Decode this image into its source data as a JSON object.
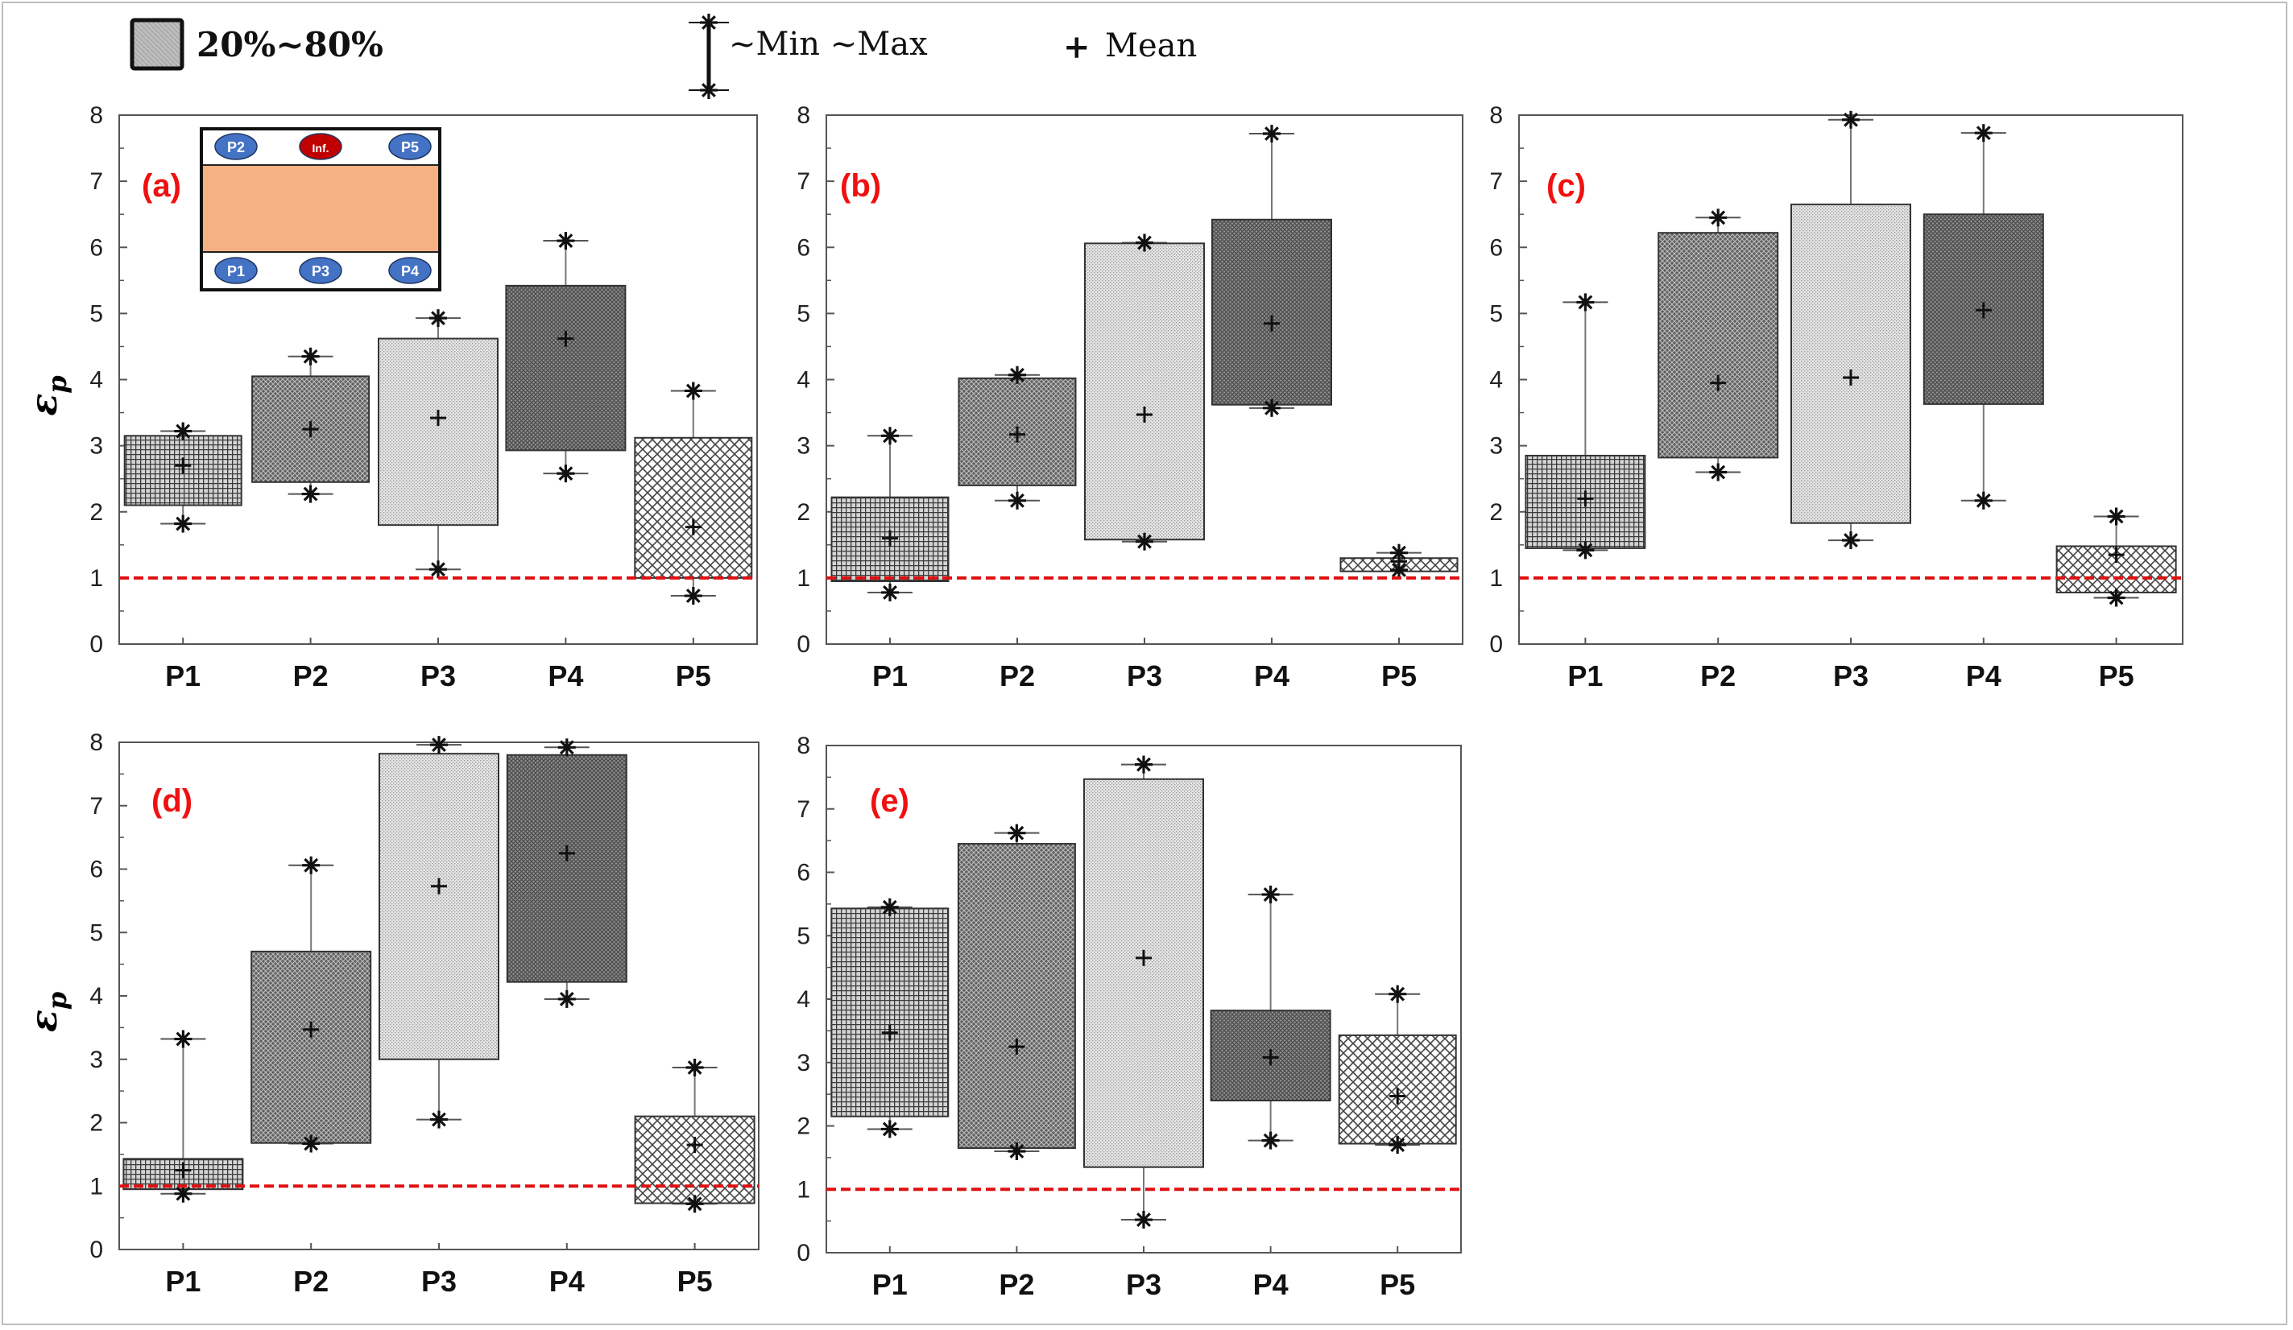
{
  "legend": {
    "box_label": "20%~80%",
    "whisker_label": "~Min ~Max",
    "mean_symbol": "+",
    "mean_label": "Mean"
  },
  "colors": {
    "reference_line": "#e01010",
    "panel_label": "#f01010",
    "box_stroke": "#333333",
    "inset_fill": "#f4b183",
    "sensor_fill": "#4472c4",
    "infusion_fill": "#c00000"
  },
  "inset": {
    "top_sensors": [
      "P2",
      "Inf.",
      "P5"
    ],
    "bottom_sensors": [
      "P1",
      "P3",
      "P4"
    ]
  },
  "chart_data": [
    {
      "type": "box",
      "label": "(a)",
      "ylabel": "εp",
      "ylim": [
        0,
        8
      ],
      "yticks": [
        "0",
        "1",
        "2",
        "3",
        "4",
        "5",
        "6",
        "7",
        "8"
      ],
      "reference_line": 1,
      "categories": [
        "P1",
        "P2",
        "P3",
        "P4",
        "P5"
      ],
      "boxes": [
        {
          "q20": 2.1,
          "q80": 3.15,
          "min": 1.82,
          "max": 3.22,
          "mean": 2.7,
          "pattern": "grid"
        },
        {
          "q20": 2.45,
          "q80": 4.05,
          "min": 2.27,
          "max": 4.35,
          "mean": 3.25,
          "pattern": "dark"
        },
        {
          "q20": 1.8,
          "q80": 4.62,
          "min": 1.13,
          "max": 4.93,
          "mean": 3.42,
          "pattern": "light"
        },
        {
          "q20": 2.93,
          "q80": 5.42,
          "min": 2.58,
          "max": 6.1,
          "mean": 4.62,
          "pattern": "medium"
        },
        {
          "q20": 1.0,
          "q80": 3.12,
          "min": 0.73,
          "max": 3.83,
          "mean": 1.77,
          "pattern": "cross"
        }
      ]
    },
    {
      "type": "box",
      "label": "(b)",
      "ylabel": "",
      "ylim": [
        0,
        8
      ],
      "yticks": [
        "0",
        "1",
        "2",
        "3",
        "4",
        "5",
        "6",
        "7",
        "8"
      ],
      "reference_line": 1,
      "categories": [
        "P1",
        "P2",
        "P3",
        "P4",
        "P5"
      ],
      "boxes": [
        {
          "q20": 0.95,
          "q80": 2.22,
          "min": 0.78,
          "max": 3.15,
          "mean": 1.6,
          "pattern": "grid"
        },
        {
          "q20": 2.4,
          "q80": 4.02,
          "min": 2.17,
          "max": 4.07,
          "mean": 3.17,
          "pattern": "dark"
        },
        {
          "q20": 1.58,
          "q80": 6.06,
          "min": 1.55,
          "max": 6.07,
          "mean": 3.47,
          "pattern": "light"
        },
        {
          "q20": 3.62,
          "q80": 6.42,
          "min": 3.57,
          "max": 7.72,
          "mean": 4.85,
          "pattern": "medium"
        },
        {
          "q20": 1.1,
          "q80": 1.3,
          "min": 1.12,
          "max": 1.38,
          "mean": 1.25,
          "pattern": "cross"
        }
      ]
    },
    {
      "type": "box",
      "label": "(c)",
      "ylabel": "",
      "ylim": [
        0,
        8
      ],
      "yticks": [
        "0",
        "1",
        "2",
        "3",
        "4",
        "5",
        "6",
        "7",
        "8"
      ],
      "reference_line": 1,
      "categories": [
        "P1",
        "P2",
        "P3",
        "P4",
        "P5"
      ],
      "boxes": [
        {
          "q20": 1.45,
          "q80": 2.85,
          "min": 1.42,
          "max": 5.17,
          "mean": 2.2,
          "pattern": "grid"
        },
        {
          "q20": 2.82,
          "q80": 6.22,
          "min": 2.6,
          "max": 6.45,
          "mean": 3.95,
          "pattern": "dark"
        },
        {
          "q20": 1.83,
          "q80": 6.65,
          "min": 1.57,
          "max": 7.93,
          "mean": 4.03,
          "pattern": "light"
        },
        {
          "q20": 3.63,
          "q80": 6.5,
          "min": 2.17,
          "max": 7.73,
          "mean": 5.05,
          "pattern": "medium"
        },
        {
          "q20": 0.78,
          "q80": 1.48,
          "min": 0.7,
          "max": 1.93,
          "mean": 1.35,
          "pattern": "cross"
        }
      ]
    },
    {
      "type": "box",
      "label": "(d)",
      "ylabel": "εp",
      "ylim": [
        0,
        8
      ],
      "yticks": [
        "0",
        "1",
        "2",
        "3",
        "4",
        "5",
        "6",
        "7",
        "8"
      ],
      "reference_line": 1,
      "categories": [
        "P1",
        "P2",
        "P3",
        "P4",
        "P5"
      ],
      "boxes": [
        {
          "q20": 0.95,
          "q80": 1.43,
          "min": 0.88,
          "max": 3.32,
          "mean": 1.25,
          "pattern": "grid"
        },
        {
          "q20": 1.68,
          "q80": 4.7,
          "min": 1.67,
          "max": 6.06,
          "mean": 3.47,
          "pattern": "dark"
        },
        {
          "q20": 3.0,
          "q80": 7.82,
          "min": 2.05,
          "max": 7.96,
          "mean": 5.73,
          "pattern": "light"
        },
        {
          "q20": 4.22,
          "q80": 7.8,
          "min": 3.95,
          "max": 7.92,
          "mean": 6.25,
          "pattern": "medium"
        },
        {
          "q20": 0.73,
          "q80": 2.1,
          "min": 0.72,
          "max": 2.87,
          "mean": 1.65,
          "pattern": "cross"
        }
      ]
    },
    {
      "type": "box",
      "label": "(e)",
      "ylabel": "",
      "ylim": [
        0,
        8
      ],
      "yticks": [
        "0",
        "1",
        "2",
        "3",
        "4",
        "5",
        "6",
        "7",
        "8"
      ],
      "reference_line": 1,
      "categories": [
        "P1",
        "P2",
        "P3",
        "P4",
        "P5"
      ],
      "boxes": [
        {
          "q20": 2.15,
          "q80": 5.43,
          "min": 1.95,
          "max": 5.45,
          "mean": 3.47,
          "pattern": "grid"
        },
        {
          "q20": 1.65,
          "q80": 6.45,
          "min": 1.6,
          "max": 6.62,
          "mean": 3.25,
          "pattern": "dark"
        },
        {
          "q20": 1.35,
          "q80": 7.47,
          "min": 0.52,
          "max": 7.7,
          "mean": 4.65,
          "pattern": "light"
        },
        {
          "q20": 2.4,
          "q80": 3.82,
          "min": 1.77,
          "max": 5.65,
          "mean": 3.08,
          "pattern": "medium"
        },
        {
          "q20": 1.72,
          "q80": 3.43,
          "min": 1.7,
          "max": 4.08,
          "mean": 2.47,
          "pattern": "cross"
        }
      ]
    }
  ]
}
